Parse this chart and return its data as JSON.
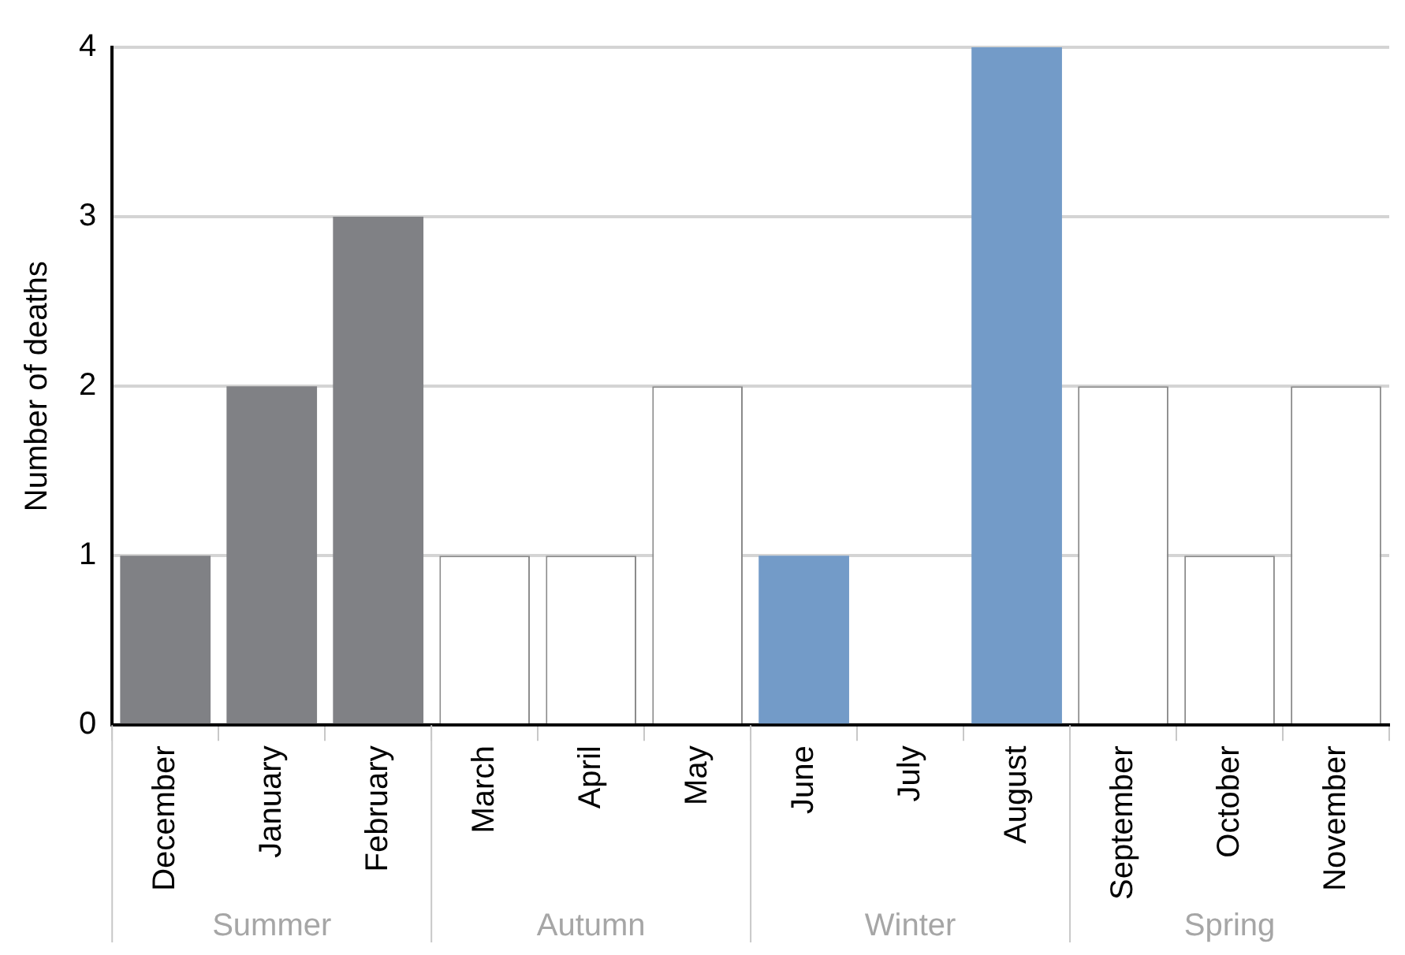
{
  "chart_data": {
    "type": "bar",
    "ylabel": "Number of deaths",
    "categories": [
      "December",
      "January",
      "February",
      "March",
      "April",
      "May",
      "June",
      "July",
      "August",
      "September",
      "October",
      "November"
    ],
    "values": [
      1,
      2,
      3,
      1,
      1,
      2,
      1,
      0,
      4,
      2,
      1,
      2
    ],
    "colors": [
      "#808185",
      "#808185",
      "#808185",
      "#ffffff",
      "#ffffff",
      "#ffffff",
      "#739bc8",
      "#739bc8",
      "#739bc8",
      "#ffffff",
      "#ffffff",
      "#ffffff"
    ],
    "annotations": [
      "Summer",
      "Autumn",
      "Winter",
      "Spring"
    ],
    "ylim": [
      0,
      4
    ],
    "yticks": [
      0,
      1,
      2,
      3,
      4
    ],
    "grid": "y",
    "legend": false
  }
}
